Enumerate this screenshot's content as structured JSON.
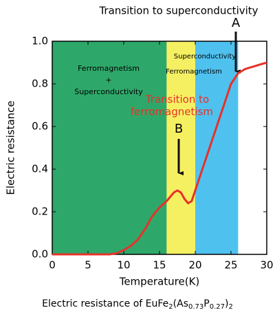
{
  "chart_data": {
    "type": "line",
    "title": "Transition to superconductivity",
    "x_label": "Temperature(K)",
    "y_label": "Electric resistance",
    "caption": [
      "Electric resistance of EuFe",
      "2",
      "(As",
      "0.73",
      "P",
      "0.27",
      ")",
      "2"
    ],
    "xlim": [
      0,
      30
    ],
    "ylim": [
      0,
      1
    ],
    "xticks": [
      0,
      5,
      10,
      15,
      20,
      25,
      30
    ],
    "yticks": [
      {
        "value": 0,
        "label": "0.0"
      },
      0.2,
      0.4,
      0.6,
      0.8,
      {
        "value": 1,
        "label": "1.0"
      }
    ],
    "regions": [
      {
        "from": 0,
        "to": 16,
        "color": "#2ea86a",
        "label": [
          "Ferromagnetism",
          "+",
          "Superconductivity"
        ]
      },
      {
        "from": 16,
        "to": 20,
        "color": "#f5f062",
        "label": [
          "Ferromagnetism"
        ]
      },
      {
        "from": 20,
        "to": 26,
        "color": "#4fc1ef",
        "label": [
          "Superconductivity"
        ]
      }
    ],
    "annotations": [
      "A",
      "B",
      "Transition to",
      "ferromagnetism"
    ],
    "x": [
      0,
      8,
      9,
      10,
      11,
      12,
      13,
      14,
      15,
      16,
      17,
      17.5,
      18,
      18.5,
      19,
      19.5,
      20,
      21,
      22,
      23,
      24,
      25,
      26,
      27,
      28,
      29,
      30
    ],
    "series": [
      {
        "color": "#e8302a",
        "values": [
          0,
          0,
          0.005,
          0.02,
          0.04,
          0.07,
          0.12,
          0.18,
          0.22,
          0.25,
          0.29,
          0.3,
          0.29,
          0.26,
          0.24,
          0.25,
          0.3,
          0.4,
          0.5,
          0.6,
          0.7,
          0.8,
          0.85,
          0.87,
          0.88,
          0.89,
          0.9
        ]
      }
    ]
  }
}
